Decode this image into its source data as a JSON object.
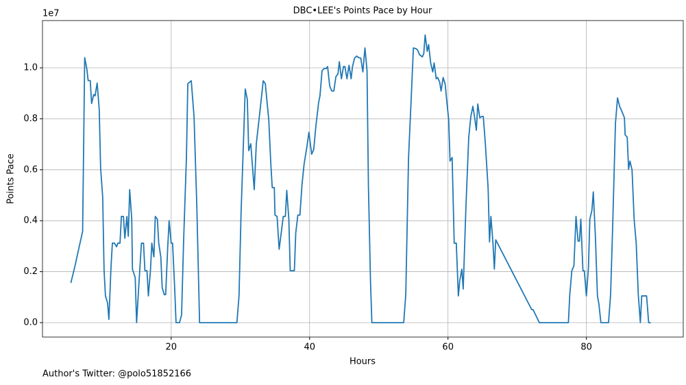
{
  "chart_data": {
    "type": "line",
    "title": "DBC•LEE's Points Pace by Hour",
    "x_label": "Hours",
    "y_label": "Points Pace",
    "y_offset_label": "1e7",
    "footer": "Author's Twitter: @polo51852166",
    "grid": true,
    "xlim": [
      1.4,
      94.0
    ],
    "xticks": [
      20,
      40,
      60,
      80
    ],
    "ylim": [
      -565000,
      11855000
    ],
    "yticks": [
      {
        "value": 0,
        "label": "0.0"
      },
      {
        "value": 2000000,
        "label": "0.2"
      },
      {
        "value": 4000000,
        "label": "0.4"
      },
      {
        "value": 6000000,
        "label": "0.6"
      },
      {
        "value": 8000000,
        "label": "0.8"
      },
      {
        "value": 10000000,
        "label": "1.0"
      }
    ],
    "x": [
      5.5,
      6.1,
      6.6,
      7.2,
      7.5,
      7.8,
      8.0,
      8.3,
      8.5,
      8.8,
      9.0,
      9.3,
      9.6,
      9.8,
      10.1,
      10.3,
      10.5,
      10.8,
      11.0,
      11.3,
      11.5,
      11.8,
      12.1,
      12.3,
      12.6,
      12.8,
      13.1,
      13.3,
      13.6,
      13.8,
      14.0,
      14.3,
      14.4,
      14.8,
      15.0,
      15.3,
      15.7,
      16.0,
      16.2,
      16.5,
      16.7,
      17.0,
      17.2,
      17.5,
      17.7,
      18.0,
      18.2,
      18.5,
      18.7,
      19.0,
      19.2,
      19.5,
      19.7,
      20.0,
      20.2,
      20.5,
      20.7,
      21.2,
      21.5,
      21.8,
      22.2,
      22.4,
      22.9,
      23.3,
      23.7,
      24.1,
      29.5,
      29.8,
      30.1,
      30.4,
      30.7,
      31.0,
      31.2,
      31.5,
      31.8,
      32.0,
      32.3,
      32.8,
      33.3,
      33.6,
      34.1,
      34.4,
      34.6,
      34.9,
      35.0,
      35.3,
      35.6,
      35.9,
      36.2,
      36.5,
      36.7,
      37.0,
      37.2,
      37.8,
      38.0,
      38.3,
      38.6,
      38.9,
      39.2,
      39.6,
      39.9,
      40.3,
      40.6,
      40.9,
      41.3,
      41.5,
      41.8,
      42.1,
      42.4,
      42.6,
      42.9,
      43.2,
      43.5,
      43.8,
      44.1,
      44.3,
      44.6,
      44.9,
      45.1,
      45.4,
      45.7,
      46.0,
      46.2,
      46.5,
      46.8,
      47.1,
      47.4,
      47.7,
      48.0,
      48.3,
      48.5,
      48.8,
      49.0,
      53.6,
      53.9,
      54.3,
      54.7,
      55.0,
      55.4,
      55.6,
      55.9,
      56.3,
      56.5,
      56.7,
      57.0,
      57.2,
      57.5,
      57.8,
      58.0,
      58.3,
      58.5,
      58.8,
      59.0,
      59.3,
      59.6,
      59.8,
      60.1,
      60.3,
      60.6,
      60.9,
      61.2,
      61.5,
      61.7,
      62.0,
      62.2,
      62.6,
      63.0,
      63.3,
      63.6,
      63.9,
      64.1,
      64.3,
      64.6,
      64.9,
      65.1,
      65.4,
      65.8,
      66.0,
      66.2,
      66.5,
      66.7,
      66.9,
      72.1,
      72.3,
      73.2,
      77.4,
      77.6,
      77.9,
      78.2,
      78.5,
      78.8,
      79.0,
      79.2,
      79.5,
      79.7,
      80.0,
      80.3,
      80.5,
      80.8,
      81.0,
      81.3,
      81.6,
      81.8,
      82.1,
      83.2,
      83.5,
      83.8,
      84.2,
      84.5,
      84.8,
      85.1,
      85.5,
      85.6,
      85.9,
      86.1,
      86.3,
      86.6,
      86.9,
      87.2,
      87.5,
      87.8,
      88.0,
      88.7,
      89.0,
      89.3
    ],
    "series": [
      {
        "name": "Points Pace",
        "color": "#1f77b4",
        "values": [
          1560000,
          2230000,
          2850000,
          3580000,
          10400000,
          9970000,
          9500000,
          9500000,
          8600000,
          8950000,
          8900000,
          9400000,
          8360000,
          6070000,
          4920000,
          2040000,
          1050000,
          780000,
          130000,
          2180000,
          3120000,
          3120000,
          2980000,
          3120000,
          3120000,
          4170000,
          4170000,
          3310000,
          4170000,
          3390000,
          5220000,
          4060000,
          2100000,
          1770000,
          0,
          1370000,
          3120000,
          3120000,
          2040000,
          2040000,
          1050000,
          2040000,
          3120000,
          2580000,
          4170000,
          4060000,
          3120000,
          2580000,
          1370000,
          1100000,
          1100000,
          2980000,
          4000000,
          3120000,
          3120000,
          1370000,
          0,
          0,
          300000,
          3250000,
          6480000,
          9380000,
          9490000,
          8090000,
          4600000,
          0,
          0,
          1050000,
          4330000,
          6750000,
          9170000,
          8760000,
          6750000,
          7020000,
          5940000,
          5220000,
          7020000,
          8230000,
          9490000,
          9380000,
          7960000,
          6210000,
          5300000,
          5300000,
          4220000,
          4170000,
          2880000,
          3520000,
          4170000,
          4170000,
          5190000,
          4060000,
          2040000,
          2040000,
          3520000,
          4220000,
          4220000,
          5400000,
          6210000,
          6880000,
          7470000,
          6610000,
          6800000,
          7690000,
          8630000,
          8900000,
          9890000,
          9970000,
          9970000,
          10050000,
          9300000,
          9090000,
          9090000,
          9650000,
          9760000,
          10240000,
          9570000,
          10050000,
          10050000,
          9570000,
          10100000,
          9570000,
          10050000,
          10380000,
          10460000,
          10400000,
          10380000,
          9840000,
          10780000,
          9890000,
          5400000,
          1640000,
          0,
          0,
          1100000,
          6480000,
          8900000,
          10780000,
          10750000,
          10700000,
          10510000,
          10430000,
          10560000,
          11290000,
          10650000,
          10910000,
          10190000,
          9840000,
          10190000,
          9570000,
          9620000,
          9440000,
          9090000,
          9620000,
          9350000,
          8760000,
          7960000,
          6340000,
          6480000,
          3120000,
          3120000,
          1050000,
          1640000,
          2100000,
          1320000,
          4600000,
          7280000,
          8090000,
          8490000,
          7960000,
          7550000,
          8580000,
          8040000,
          8090000,
          8090000,
          7020000,
          5270000,
          3170000,
          4170000,
          3120000,
          2100000,
          3250000,
          510000,
          510000,
          0,
          0,
          1100000,
          2040000,
          2230000,
          4170000,
          3200000,
          3200000,
          4060000,
          2040000,
          2040000,
          1050000,
          2180000,
          4060000,
          4410000,
          5130000,
          3390000,
          1050000,
          750000,
          0,
          0,
          1100000,
          3790000,
          7820000,
          8820000,
          8490000,
          8310000,
          8040000,
          7370000,
          7280000,
          6020000,
          6340000,
          5990000,
          4060000,
          3120000,
          1100000,
          0,
          1050000,
          1050000,
          0,
          0
        ]
      }
    ]
  }
}
